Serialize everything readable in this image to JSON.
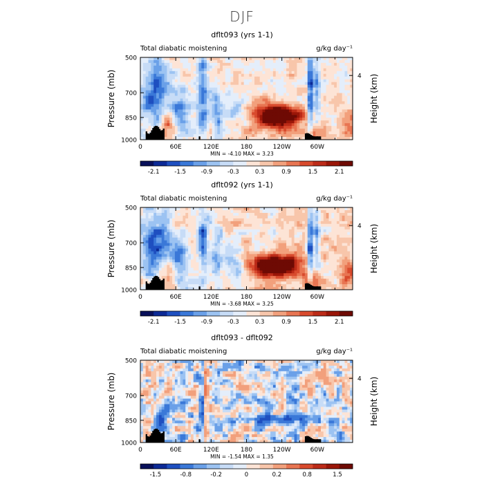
{
  "figure": {
    "title": "DJF"
  },
  "chart_data": [
    {
      "type": "heatmap",
      "panel_title": "dflt093 (yrs 1-1)",
      "left_label": "Total diabatic moistening",
      "right_label": "g/kg day⁻¹",
      "ylabel": "Pressure (mb)",
      "ylabel_right": "Height (km)",
      "y_ticks": [
        "500",
        "700",
        "850",
        "1000"
      ],
      "y_ticks_right": [
        "4"
      ],
      "x_ticks": [
        "0",
        "60E",
        "120E",
        "180",
        "120W",
        "60W"
      ],
      "stats": "MIN =   -4.10   MAX =    3.23",
      "min": -4.1,
      "max": 3.23,
      "colorbar_ticks": [
        "-2.1",
        "-1.5",
        "-0.9",
        "-0.3",
        "0.3",
        "0.9",
        "1.5",
        "2.1"
      ],
      "contour_levels": [
        -2.4,
        -2.1,
        -1.8,
        -1.5,
        -1.2,
        -0.9,
        -0.6,
        -0.3,
        0,
        0.3,
        0.6,
        0.9,
        1.2,
        1.5,
        1.8,
        2.1,
        2.4
      ]
    },
    {
      "type": "heatmap",
      "panel_title": "dflt092 (yrs 1-1)",
      "left_label": "Total diabatic moistening",
      "right_label": "g/kg day⁻¹",
      "ylabel": "Pressure (mb)",
      "ylabel_right": "Height (km)",
      "y_ticks": [
        "500",
        "700",
        "850",
        "1000"
      ],
      "y_ticks_right": [
        "4"
      ],
      "x_ticks": [
        "0",
        "60E",
        "120E",
        "180",
        "120W",
        "60W"
      ],
      "stats": "MIN =   -3.68   MAX =    3.25",
      "min": -3.68,
      "max": 3.25,
      "colorbar_ticks": [
        "-2.1",
        "-1.5",
        "-0.9",
        "-0.3",
        "0.3",
        "0.9",
        "1.5",
        "2.1"
      ],
      "contour_levels": [
        -2.4,
        -2.1,
        -1.8,
        -1.5,
        -1.2,
        -0.9,
        -0.6,
        -0.3,
        0,
        0.3,
        0.6,
        0.9,
        1.2,
        1.5,
        1.8,
        2.1,
        2.4
      ]
    },
    {
      "type": "heatmap",
      "panel_title": "dflt093 - dflt092",
      "left_label": "Total diabatic moistening",
      "right_label": "g/kg day⁻¹",
      "ylabel": "Pressure (mb)",
      "ylabel_right": "Height (km)",
      "y_ticks": [
        "500",
        "700",
        "850",
        "1000"
      ],
      "y_ticks_right": [
        "4"
      ],
      "x_ticks": [
        "0",
        "60E",
        "120E",
        "180",
        "120W",
        "60W"
      ],
      "stats": "MIN =   -1.54   MAX =    1.35",
      "min": -1.54,
      "max": 1.35,
      "colorbar_ticks": [
        "-1.5",
        "-0.8",
        "-0.2",
        "0",
        "0.2",
        "0.8",
        "1.5"
      ],
      "contour_levels": [
        -2,
        -1.5,
        -1.2,
        -0.8,
        -0.4,
        -0.2,
        -0.1,
        0,
        0.1,
        0.2,
        0.4,
        0.8,
        1.2,
        1.5,
        2
      ]
    }
  ],
  "colors": {
    "palette": [
      "#08105a",
      "#0c2a96",
      "#1e4fc0",
      "#3a78d8",
      "#6aa0e8",
      "#9cc3f2",
      "#c7dcf7",
      "#e4eefb",
      "#fde4d6",
      "#f8c6ab",
      "#f2a07c",
      "#e87552",
      "#d84a2d",
      "#bc2b18",
      "#9a1608",
      "#6e0a04"
    ],
    "terrain": "#000000",
    "axis": "#000000"
  }
}
